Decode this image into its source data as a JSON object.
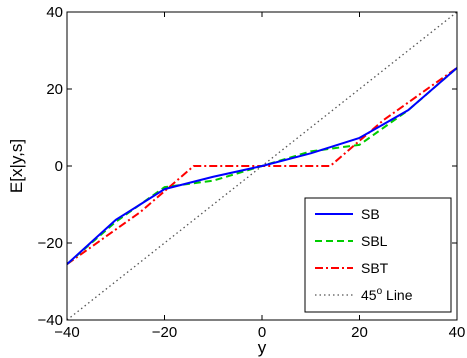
{
  "chart_data": {
    "type": "line",
    "xlabel": "y",
    "ylabel": "E[x|y,s]",
    "xlim": [
      -40,
      40
    ],
    "ylim": [
      -40,
      40
    ],
    "xticks": [
      -40,
      -20,
      0,
      20,
      40
    ],
    "yticks": [
      -40,
      -20,
      0,
      20,
      40
    ],
    "xtick_labels": [
      "−40",
      "−20",
      "0",
      "20",
      "40"
    ],
    "ytick_labels": [
      "−40",
      "−20",
      "0",
      "20",
      "40"
    ],
    "grid": false,
    "legend_position": "bottom-right",
    "series": [
      {
        "name": "SB",
        "color": "#0000ff",
        "style": "solid",
        "x": [
          -40,
          -30,
          -20,
          -10,
          0,
          10,
          20,
          30,
          40
        ],
        "y": [
          -25.5,
          -14,
          -6,
          -2.8,
          0,
          3.3,
          7.3,
          14.5,
          25.5
        ]
      },
      {
        "name": "SBL",
        "color": "#00cc00",
        "style": "dashed",
        "x": [
          -40,
          -30,
          -20,
          -10,
          0,
          10,
          20,
          30,
          40
        ],
        "y": [
          -25.5,
          -14.5,
          -5.5,
          -3.8,
          0,
          3.8,
          5.5,
          14.5,
          25.5
        ]
      },
      {
        "name": "SBT",
        "color": "#ff0000",
        "style": "dashdot",
        "x": [
          -40,
          -25,
          -14,
          0,
          14,
          25,
          40
        ],
        "y": [
          -25.5,
          -12,
          0,
          0,
          0,
          12,
          25.5
        ]
      },
      {
        "name": "45",
        "name_sup": "o",
        "name_suffix": " Line",
        "color": "#555555",
        "style": "dotted",
        "x": [
          -40,
          40
        ],
        "y": [
          -40,
          40
        ]
      }
    ]
  }
}
